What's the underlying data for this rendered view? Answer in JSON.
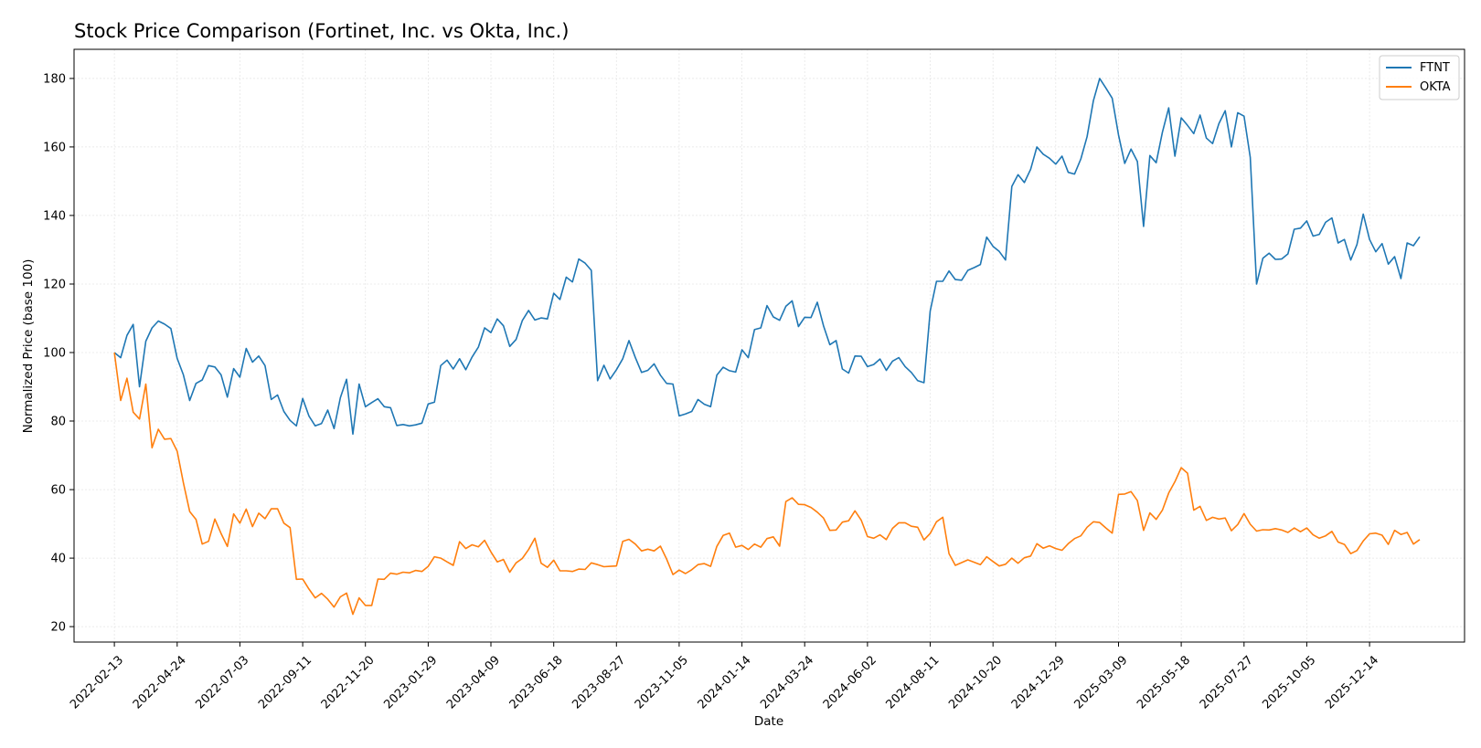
{
  "chart_data": {
    "type": "line",
    "title": "Stock Price Comparison (Fortinet, Inc. vs Okta, Inc.)",
    "xlabel": "Date",
    "ylabel": "Normalized Price (base 100)",
    "x_tick_labels": [
      "2022-02-13",
      "2022-04-24",
      "2022-07-03",
      "2022-09-11",
      "2022-11-20",
      "2023-01-29",
      "2023-04-09",
      "2023-06-18",
      "2023-08-27",
      "2023-11-05",
      "2024-01-14",
      "2024-03-24",
      "2024-06-02",
      "2024-08-11",
      "2024-10-20",
      "2024-12-29",
      "2025-03-09",
      "2025-05-18",
      "2025-07-27",
      "2025-10-05",
      "2025-12-14"
    ],
    "y_ticks": [
      20,
      40,
      60,
      80,
      100,
      120,
      140,
      160,
      180
    ],
    "xlim": [
      "2021-12-30",
      "2026-03-30"
    ],
    "ylim": [
      15.5,
      188.5
    ],
    "grid": true,
    "legend_position": "top-right",
    "series": [
      {
        "name": "FTNT",
        "color": "#1f77b4",
        "x": [
          "2022-02-13",
          "2022-02-20",
          "2022-02-27",
          "2022-03-06",
          "2022-03-13",
          "2022-03-20",
          "2022-03-27",
          "2022-04-03",
          "2022-04-10",
          "2022-04-17",
          "2022-04-24",
          "2022-05-01",
          "2022-05-08",
          "2022-05-15",
          "2022-05-22",
          "2022-05-29",
          "2022-06-05",
          "2022-06-12",
          "2022-06-19",
          "2022-06-26",
          "2022-07-03",
          "2022-07-10",
          "2022-07-17",
          "2022-07-24",
          "2022-07-31",
          "2022-08-07",
          "2022-08-14",
          "2022-08-21",
          "2022-08-28",
          "2022-09-04",
          "2022-09-11",
          "2022-09-18",
          "2022-09-25",
          "2022-10-02",
          "2022-10-09",
          "2022-10-16",
          "2022-10-23",
          "2022-10-30",
          "2022-11-06",
          "2022-11-13",
          "2022-11-20",
          "2022-11-27",
          "2022-12-04",
          "2022-12-11",
          "2022-12-18",
          "2022-12-25",
          "2023-01-01",
          "2023-01-08",
          "2023-01-15",
          "2023-01-22",
          "2023-01-29",
          "2023-02-05",
          "2023-02-12",
          "2023-02-19",
          "2023-02-26",
          "2023-03-05",
          "2023-03-12",
          "2023-03-19",
          "2023-03-26",
          "2023-04-02",
          "2023-04-09",
          "2023-04-16",
          "2023-04-23",
          "2023-04-30",
          "2023-05-07",
          "2023-05-14",
          "2023-05-21",
          "2023-05-28",
          "2023-06-04",
          "2023-06-11",
          "2023-06-18",
          "2023-06-25",
          "2023-07-02",
          "2023-07-09",
          "2023-07-16",
          "2023-07-23",
          "2023-07-30",
          "2023-08-06",
          "2023-08-13",
          "2023-08-20",
          "2023-08-27",
          "2023-09-03",
          "2023-09-10",
          "2023-09-17",
          "2023-09-24",
          "2023-10-01",
          "2023-10-08",
          "2023-10-15",
          "2023-10-22",
          "2023-10-29",
          "2023-11-05",
          "2023-11-12",
          "2023-11-19",
          "2023-11-26",
          "2023-12-03",
          "2023-12-10",
          "2023-12-17",
          "2023-12-24",
          "2023-12-31",
          "2024-01-07",
          "2024-01-14",
          "2024-01-21",
          "2024-01-28",
          "2024-02-04",
          "2024-02-11",
          "2024-02-18",
          "2024-02-25",
          "2024-03-03",
          "2024-03-10",
          "2024-03-17",
          "2024-03-24",
          "2024-03-31",
          "2024-04-07",
          "2024-04-14",
          "2024-04-21",
          "2024-04-28",
          "2024-05-05",
          "2024-05-12",
          "2024-05-19",
          "2024-05-26",
          "2024-06-02",
          "2024-06-09",
          "2024-06-16",
          "2024-06-23",
          "2024-06-30",
          "2024-07-07",
          "2024-07-14",
          "2024-07-21",
          "2024-07-28",
          "2024-08-04",
          "2024-08-11",
          "2024-08-18",
          "2024-08-25",
          "2024-09-01",
          "2024-09-08",
          "2024-09-15",
          "2024-09-22",
          "2024-09-29",
          "2024-10-06",
          "2024-10-13",
          "2024-10-20",
          "2024-10-27",
          "2024-11-03",
          "2024-11-10",
          "2024-11-17",
          "2024-11-24",
          "2024-12-01",
          "2024-12-08",
          "2024-12-15",
          "2024-12-22",
          "2024-12-29",
          "2025-01-05",
          "2025-01-12",
          "2025-01-19",
          "2025-01-26",
          "2025-02-02",
          "2025-02-09",
          "2025-02-16",
          "2025-02-23",
          "2025-03-02",
          "2025-03-09",
          "2025-03-16",
          "2025-03-23",
          "2025-03-30",
          "2025-04-06",
          "2025-04-13",
          "2025-04-20",
          "2025-04-27",
          "2025-05-04",
          "2025-05-11",
          "2025-05-18",
          "2025-05-25",
          "2025-06-01",
          "2025-06-08",
          "2025-06-15",
          "2025-06-22",
          "2025-06-29",
          "2025-07-06",
          "2025-07-13",
          "2025-07-20",
          "2025-07-27",
          "2025-08-03",
          "2025-08-10",
          "2025-08-17",
          "2025-08-24",
          "2025-08-31",
          "2025-09-07",
          "2025-09-14",
          "2025-09-21",
          "2025-09-28",
          "2025-10-05",
          "2025-10-12",
          "2025-10-19",
          "2025-10-26",
          "2025-11-02",
          "2025-11-09",
          "2025-11-16",
          "2025-11-23",
          "2025-11-30",
          "2025-12-07",
          "2025-12-14",
          "2025-12-21",
          "2025-12-28",
          "2026-01-04",
          "2026-01-11",
          "2026-01-18",
          "2026-01-25",
          "2026-02-01",
          "2026-02-08"
        ],
        "values": [
          100,
          98.5,
          105,
          108.2,
          90,
          103.3,
          107.2,
          109.2,
          108.3,
          107,
          98.3,
          93.5,
          86,
          91,
          92,
          96.2,
          95.8,
          93.5,
          87,
          95.3,
          92.8,
          101.2,
          97.2,
          99,
          96.2,
          86.3,
          87.6,
          82.8,
          80.2,
          78.6,
          86.6,
          81.5,
          78.6,
          79.3,
          83.2,
          77.8,
          86.8,
          92.2,
          76.2,
          90.8,
          84.2,
          85.4,
          86.5,
          84.2,
          83.9,
          78.7,
          79,
          78.6,
          78.9,
          79.4,
          85,
          85.5,
          96.2,
          97.8,
          95.2,
          98.2,
          95,
          98.7,
          101.6,
          107.2,
          105.8,
          109.8,
          107.8,
          101.8,
          103.8,
          109.3,
          112.3,
          109.5,
          110.1,
          109.8,
          117.3,
          115.5,
          122,
          120.6,
          127.3,
          126.1,
          124,
          91.8,
          96.3,
          92.3,
          95,
          98.2,
          103.5,
          98.6,
          94.2,
          94.8,
          96.7,
          93.4,
          91,
          90.8,
          81.5,
          82.1,
          82.8,
          86.3,
          84.9,
          84.2,
          93.4,
          95.7,
          94.7,
          94.3,
          100.8,
          98.5,
          106.7,
          107.2,
          113.7,
          110.4,
          109.4,
          113.5,
          115.1,
          107.6,
          110.3,
          110.2,
          114.7,
          107.8,
          102.3,
          103.5,
          95.2,
          94,
          99,
          98.9,
          95.9,
          96.5,
          98.1,
          94.8,
          97.5,
          98.5,
          95.9,
          94.2,
          91.8,
          91.2,
          112.1,
          120.8,
          120.8,
          123.8,
          121.3,
          121.1,
          124,
          124.8,
          125.7,
          133.7,
          131,
          129.5,
          127,
          148.5,
          151.9,
          149.6,
          153.5,
          160,
          157.9,
          156.7,
          155,
          157.3,
          152.6,
          152.1,
          156.5,
          163,
          173.5,
          180,
          177.2,
          174.2,
          163.5,
          155.2,
          159.4,
          155.8,
          136.8,
          157.5,
          155.4,
          164.3,
          171.4,
          157.3,
          168.5,
          166.3,
          163.9,
          169.3,
          162.6,
          161,
          166.8,
          170.6,
          160,
          170,
          169,
          157,
          120,
          127.5,
          129,
          127.2,
          127.3,
          128.8,
          136,
          136.3,
          138.4,
          134,
          134.5,
          138,
          139.3,
          132,
          133,
          127,
          131.5,
          140.4,
          133,
          129.4,
          131.8,
          125.8,
          128,
          121.6,
          132,
          131.2,
          133.8
        ]
      },
      {
        "name": "OKTA",
        "color": "#ff7f0e",
        "x": [
          "2022-02-13",
          "2022-02-20",
          "2022-02-27",
          "2022-03-06",
          "2022-03-13",
          "2022-03-20",
          "2022-03-27",
          "2022-04-03",
          "2022-04-10",
          "2022-04-17",
          "2022-04-24",
          "2022-05-01",
          "2022-05-08",
          "2022-05-15",
          "2022-05-22",
          "2022-05-29",
          "2022-06-05",
          "2022-06-12",
          "2022-06-19",
          "2022-06-26",
          "2022-07-03",
          "2022-07-10",
          "2022-07-17",
          "2022-07-24",
          "2022-07-31",
          "2022-08-07",
          "2022-08-14",
          "2022-08-21",
          "2022-08-28",
          "2022-09-04",
          "2022-09-11",
          "2022-09-18",
          "2022-09-25",
          "2022-10-02",
          "2022-10-09",
          "2022-10-16",
          "2022-10-23",
          "2022-10-30",
          "2022-11-06",
          "2022-11-13",
          "2022-11-20",
          "2022-11-27",
          "2022-12-04",
          "2022-12-11",
          "2022-12-18",
          "2022-12-25",
          "2023-01-01",
          "2023-01-08",
          "2023-01-15",
          "2023-01-22",
          "2023-01-29",
          "2023-02-05",
          "2023-02-12",
          "2023-02-19",
          "2023-02-26",
          "2023-03-05",
          "2023-03-12",
          "2023-03-19",
          "2023-03-26",
          "2023-04-02",
          "2023-04-09",
          "2023-04-16",
          "2023-04-23",
          "2023-04-30",
          "2023-05-07",
          "2023-05-14",
          "2023-05-21",
          "2023-05-28",
          "2023-06-04",
          "2023-06-11",
          "2023-06-18",
          "2023-06-25",
          "2023-07-02",
          "2023-07-09",
          "2023-07-16",
          "2023-07-23",
          "2023-07-30",
          "2023-08-06",
          "2023-08-13",
          "2023-08-20",
          "2023-08-27",
          "2023-09-03",
          "2023-09-10",
          "2023-09-17",
          "2023-09-24",
          "2023-10-01",
          "2023-10-08",
          "2023-10-15",
          "2023-10-22",
          "2023-10-29",
          "2023-11-05",
          "2023-11-12",
          "2023-11-19",
          "2023-11-26",
          "2023-12-03",
          "2023-12-10",
          "2023-12-17",
          "2023-12-24",
          "2023-12-31",
          "2024-01-07",
          "2024-01-14",
          "2024-01-21",
          "2024-01-28",
          "2024-02-04",
          "2024-02-11",
          "2024-02-18",
          "2024-02-25",
          "2024-03-03",
          "2024-03-10",
          "2024-03-17",
          "2024-03-24",
          "2024-03-31",
          "2024-04-07",
          "2024-04-14",
          "2024-04-21",
          "2024-04-28",
          "2024-05-05",
          "2024-05-12",
          "2024-05-19",
          "2024-05-26",
          "2024-06-02",
          "2024-06-09",
          "2024-06-16",
          "2024-06-23",
          "2024-06-30",
          "2024-07-07",
          "2024-07-14",
          "2024-07-21",
          "2024-07-28",
          "2024-08-04",
          "2024-08-11",
          "2024-08-18",
          "2024-08-25",
          "2024-09-01",
          "2024-09-08",
          "2024-09-15",
          "2024-09-22",
          "2024-09-29",
          "2024-10-06",
          "2024-10-13",
          "2024-10-20",
          "2024-10-27",
          "2024-11-03",
          "2024-11-10",
          "2024-11-17",
          "2024-11-24",
          "2024-12-01",
          "2024-12-08",
          "2024-12-15",
          "2024-12-22",
          "2024-12-29",
          "2025-01-05",
          "2025-01-12",
          "2025-01-19",
          "2025-01-26",
          "2025-02-02",
          "2025-02-09",
          "2025-02-16",
          "2025-02-23",
          "2025-03-02",
          "2025-03-09",
          "2025-03-16",
          "2025-03-23",
          "2025-03-30",
          "2025-04-06",
          "2025-04-13",
          "2025-04-20",
          "2025-04-27",
          "2025-05-04",
          "2025-05-11",
          "2025-05-18",
          "2025-05-25",
          "2025-06-01",
          "2025-06-08",
          "2025-06-15",
          "2025-06-22",
          "2025-06-29",
          "2025-07-06",
          "2025-07-13",
          "2025-07-20",
          "2025-07-27",
          "2025-08-03",
          "2025-08-10",
          "2025-08-17",
          "2025-08-24",
          "2025-08-31",
          "2025-09-07",
          "2025-09-14",
          "2025-09-21",
          "2025-09-28",
          "2025-10-05",
          "2025-10-12",
          "2025-10-19",
          "2025-10-26",
          "2025-11-02",
          "2025-11-09",
          "2025-11-16",
          "2025-11-23",
          "2025-11-30",
          "2025-12-07",
          "2025-12-14",
          "2025-12-21",
          "2025-12-28",
          "2026-01-04",
          "2026-01-11",
          "2026-01-18",
          "2026-01-25",
          "2026-02-01",
          "2026-02-08"
        ],
        "values": [
          100,
          86,
          92.5,
          82.6,
          80.6,
          90.8,
          72.2,
          77.6,
          74.7,
          74.9,
          71.2,
          62,
          53.6,
          51.3,
          44.1,
          44.9,
          51.4,
          47.2,
          43.4,
          52.9,
          50.2,
          54.3,
          49.2,
          53.1,
          51.5,
          54.4,
          54.4,
          50.2,
          48.9,
          33.8,
          33.9,
          31,
          28.4,
          29.7,
          28,
          25.7,
          28.7,
          29.8,
          23.6,
          28.4,
          26.2,
          26.2,
          33.9,
          33.8,
          35.6,
          35.3,
          35.9,
          35.7,
          36.4,
          36.1,
          37.6,
          40.4,
          40,
          38.9,
          37.9,
          44.8,
          42.8,
          43.9,
          43.3,
          45.2,
          41.8,
          38.9,
          39.6,
          35.9,
          38.6,
          39.9,
          42.5,
          45.8,
          38.5,
          37.3,
          39.4,
          36.3,
          36.3,
          36.1,
          36.8,
          36.7,
          38.6,
          38.1,
          37.5,
          37.6,
          37.7,
          44.9,
          45.5,
          44.1,
          42.1,
          42.6,
          42.1,
          43.5,
          39.7,
          35.2,
          36.5,
          35.5,
          36.6,
          38.1,
          38.4,
          37.6,
          43.4,
          46.6,
          47.3,
          43.2,
          43.7,
          42.5,
          44.1,
          43.2,
          45.7,
          46.2,
          43.5,
          56.5,
          57.6,
          55.7,
          55.6,
          54.8,
          53.4,
          51.7,
          48.1,
          48.2,
          50.5,
          50.9,
          53.8,
          51.1,
          46.3,
          45.8,
          46.8,
          45.4,
          48.7,
          50.3,
          50.3,
          49.3,
          49,
          45.3,
          47.2,
          50.6,
          51.9,
          41.3,
          37.9,
          38.7,
          39.5,
          38.8,
          38.1,
          40.4,
          39,
          37.7,
          38.2,
          40,
          38.5,
          40.1,
          40.6,
          44.2,
          42.9,
          43.6,
          42.8,
          42.3,
          44.2,
          45.7,
          46.5,
          49,
          50.6,
          50.4,
          48.8,
          47.3,
          58.6,
          58.7,
          59.4,
          56.8,
          48.1,
          53.2,
          51.3,
          54,
          59,
          62.3,
          66.4,
          64.8,
          54,
          55.1,
          51,
          51.9,
          51.4,
          51.7,
          48,
          49.8,
          53,
          49.9,
          47.9,
          48.3,
          48.2,
          48.6,
          48.2,
          47.5,
          48.8,
          47.7,
          48.8,
          46.8,
          45.8,
          46.5,
          47.8,
          44.7,
          44,
          41.3,
          42.2,
          45,
          47.1,
          47.3,
          46.7,
          44,
          48.1,
          46.9,
          47.5,
          44.1,
          45.4
        ]
      }
    ]
  }
}
